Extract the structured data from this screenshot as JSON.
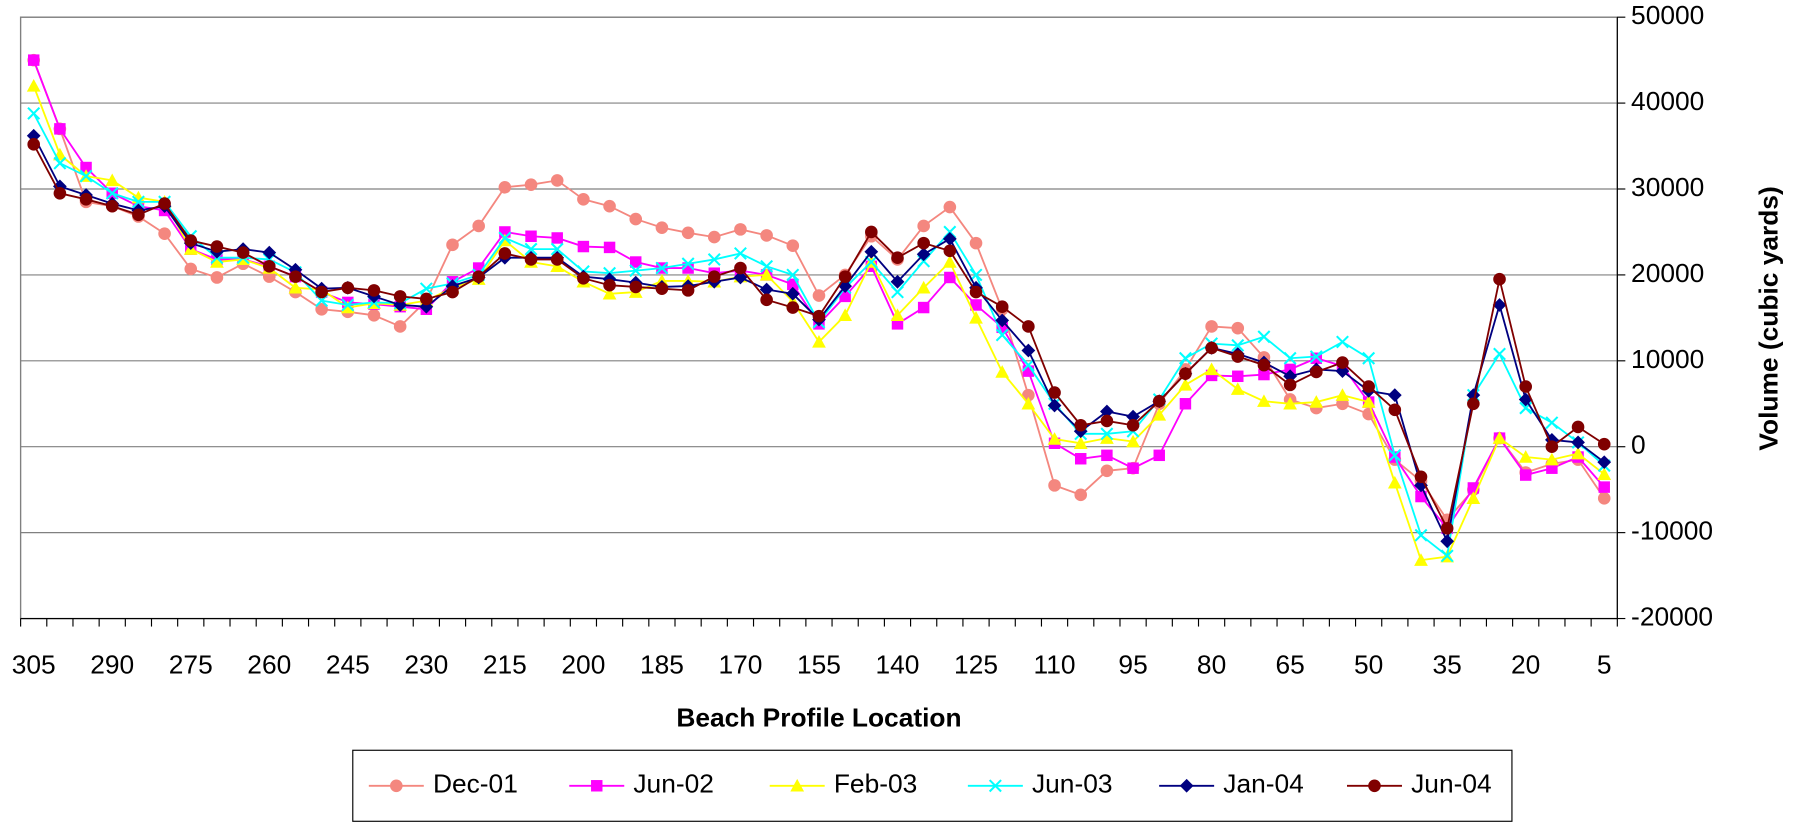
{
  "chart_data": {
    "type": "line",
    "x_label": "Beach Profile Location",
    "y_label": "Volume (cubic yards)",
    "categories": [
      "305",
      null,
      null,
      "290",
      null,
      null,
      "275",
      null,
      null,
      "260",
      null,
      null,
      "245",
      null,
      null,
      "230",
      null,
      null,
      "215",
      null,
      null,
      "200",
      null,
      null,
      "185",
      null,
      null,
      "170",
      null,
      null,
      "155",
      null,
      null,
      "140",
      null,
      null,
      "125",
      null,
      null,
      "110",
      null,
      null,
      "95",
      null,
      null,
      "80",
      null,
      null,
      "65",
      null,
      null,
      "50",
      null,
      null,
      "35",
      null,
      null,
      "20",
      null,
      null,
      "5"
    ],
    "ylim": [
      -20000,
      50000
    ],
    "yticks": [
      -20000,
      -10000,
      0,
      10000,
      20000,
      30000,
      40000,
      50000
    ],
    "grid": true,
    "legend": "bottom",
    "series": [
      {
        "name": "Dec-01",
        "color": "#f4877f",
        "marker": "circle",
        "values": [
          45000,
          37000,
          28500,
          28000,
          26800,
          24800,
          20700,
          19700,
          21300,
          19800,
          18000,
          16000,
          15700,
          15300,
          14000,
          17000,
          23500,
          25700,
          30200,
          30500,
          31000,
          28800,
          28000,
          26500,
          25500,
          24900,
          24400,
          25300,
          24600,
          23400,
          17600,
          20000,
          24500,
          21800,
          25700,
          27900,
          23700,
          16000,
          6000,
          -4500,
          -5600,
          -2800,
          -2500,
          5000,
          9000,
          14000,
          13800,
          10400,
          5500,
          4500,
          5000,
          3800,
          -1500,
          -4000,
          -8500,
          -5000,
          1000,
          -3000,
          -2000,
          -1500,
          -6000
        ]
      },
      {
        "name": "Jun-02",
        "color": "#ff00ff",
        "marker": "square",
        "values": [
          45000,
          37000,
          32500,
          29500,
          28000,
          27500,
          23000,
          21800,
          21800,
          21000,
          19800,
          18000,
          16800,
          16600,
          16300,
          16000,
          19200,
          20800,
          25000,
          24500,
          24300,
          23300,
          23200,
          21500,
          20800,
          20800,
          20200,
          20500,
          20000,
          18900,
          14300,
          17500,
          21000,
          14300,
          16200,
          19700,
          16500,
          13900,
          8800,
          400,
          -1400,
          -1000,
          -2500,
          -1000,
          5000,
          8300,
          8200,
          8400,
          9000,
          10300,
          9400,
          5200,
          -1200,
          -5800,
          -9500,
          -4800,
          1000,
          -3300,
          -2500,
          -1200,
          -4700
        ]
      },
      {
        "name": "Feb-03",
        "color": "#ffff00",
        "marker": "triangle",
        "values": [
          42000,
          34000,
          31500,
          31000,
          29000,
          28500,
          23000,
          21500,
          21800,
          20800,
          18500,
          18300,
          16200,
          16700,
          16500,
          17000,
          18500,
          19500,
          24000,
          21500,
          21000,
          19200,
          17800,
          18000,
          19300,
          19300,
          19200,
          19800,
          20000,
          16900,
          12200,
          15300,
          21500,
          15300,
          18500,
          21500,
          15000,
          8700,
          5000,
          900,
          400,
          1000,
          600,
          3700,
          7200,
          9000,
          6700,
          5300,
          5000,
          5200,
          6000,
          5200,
          -4200,
          -13200,
          -12800,
          -6000,
          1000,
          -1200,
          -1500,
          -800,
          -3200
        ]
      },
      {
        "name": "Jun-03",
        "color": "#00ffff",
        "marker": "x",
        "values": [
          38800,
          33000,
          31500,
          29500,
          28500,
          28500,
          24500,
          22000,
          22000,
          21800,
          20300,
          17000,
          16500,
          16800,
          16700,
          18400,
          19000,
          20000,
          24300,
          23000,
          23000,
          20400,
          20200,
          20500,
          20800,
          21300,
          21800,
          22500,
          21000,
          20000,
          14500,
          18500,
          21500,
          18000,
          21600,
          25000,
          20000,
          13000,
          9500,
          5000,
          1500,
          1500,
          1800,
          5500,
          10300,
          12000,
          11800,
          12800,
          10300,
          10500,
          12200,
          10300,
          -1000,
          -10300,
          -12700,
          6000,
          10800,
          4500,
          2800,
          500,
          -2200
        ]
      },
      {
        "name": "Jan-04",
        "color": "#000080",
        "marker": "diamond",
        "values": [
          36200,
          30300,
          29300,
          28300,
          27500,
          28000,
          23700,
          22700,
          23000,
          22600,
          20600,
          18400,
          18500,
          17500,
          16500,
          16300,
          18700,
          19700,
          22000,
          22000,
          22000,
          19800,
          19500,
          19100,
          18600,
          18700,
          19200,
          19700,
          18300,
          17800,
          14800,
          18700,
          22700,
          19200,
          22400,
          24200,
          18500,
          14700,
          11200,
          4800,
          1800,
          4100,
          3500,
          5300,
          8500,
          11500,
          10800,
          9800,
          8200,
          9000,
          8800,
          6500,
          6000,
          -4500,
          -11000,
          6000,
          16500,
          5500,
          800,
          500,
          -1800
        ]
      },
      {
        "name": "Jun-04",
        "color": "#800000",
        "marker": "circle",
        "values": [
          35200,
          29500,
          28800,
          28000,
          27000,
          28300,
          24000,
          23300,
          22600,
          21000,
          19800,
          18000,
          18500,
          18200,
          17500,
          17200,
          18000,
          19800,
          22500,
          21800,
          21800,
          19600,
          18800,
          18600,
          18400,
          18200,
          19800,
          20800,
          17100,
          16200,
          15200,
          19800,
          25000,
          22000,
          23700,
          22800,
          18000,
          16300,
          14000,
          6300,
          2500,
          3000,
          2500,
          5300,
          8500,
          11500,
          10500,
          9500,
          7200,
          8700,
          9800,
          7000,
          4300,
          -3500,
          -9500,
          5000,
          19500,
          7000,
          0,
          2300,
          300
        ]
      }
    ]
  }
}
